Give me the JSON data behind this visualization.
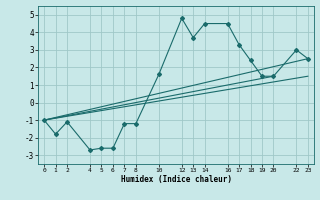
{
  "xlabel": "Humidex (Indice chaleur)",
  "background_color": "#c8e8e8",
  "grid_color": "#a0c8c8",
  "line_color": "#1a6b6b",
  "ylim": [
    -3.5,
    5.5
  ],
  "xlim": [
    -0.5,
    23.5
  ],
  "yticks": [
    -3,
    -2,
    -1,
    0,
    1,
    2,
    3,
    4,
    5
  ],
  "xticks": [
    0,
    1,
    2,
    4,
    5,
    6,
    7,
    8,
    10,
    12,
    13,
    14,
    16,
    17,
    18,
    19,
    20,
    22,
    23
  ],
  "lines": [
    {
      "x": [
        0,
        1,
        2,
        4,
        5,
        6,
        7,
        8,
        10,
        12,
        13,
        14,
        16,
        17,
        18,
        19,
        20,
        22,
        23
      ],
      "y": [
        -1,
        -1.8,
        -1.1,
        -2.7,
        -2.6,
        -2.6,
        -1.2,
        -1.2,
        1.6,
        4.8,
        3.7,
        4.5,
        4.5,
        3.3,
        2.4,
        1.5,
        1.5,
        3.0,
        2.5
      ]
    },
    {
      "x": [
        0,
        23
      ],
      "y": [
        -1,
        2.5
      ]
    },
    {
      "x": [
        0,
        23
      ],
      "y": [
        -1,
        1.5
      ]
    },
    {
      "x": [
        0,
        20
      ],
      "y": [
        -1,
        1.5
      ]
    }
  ]
}
